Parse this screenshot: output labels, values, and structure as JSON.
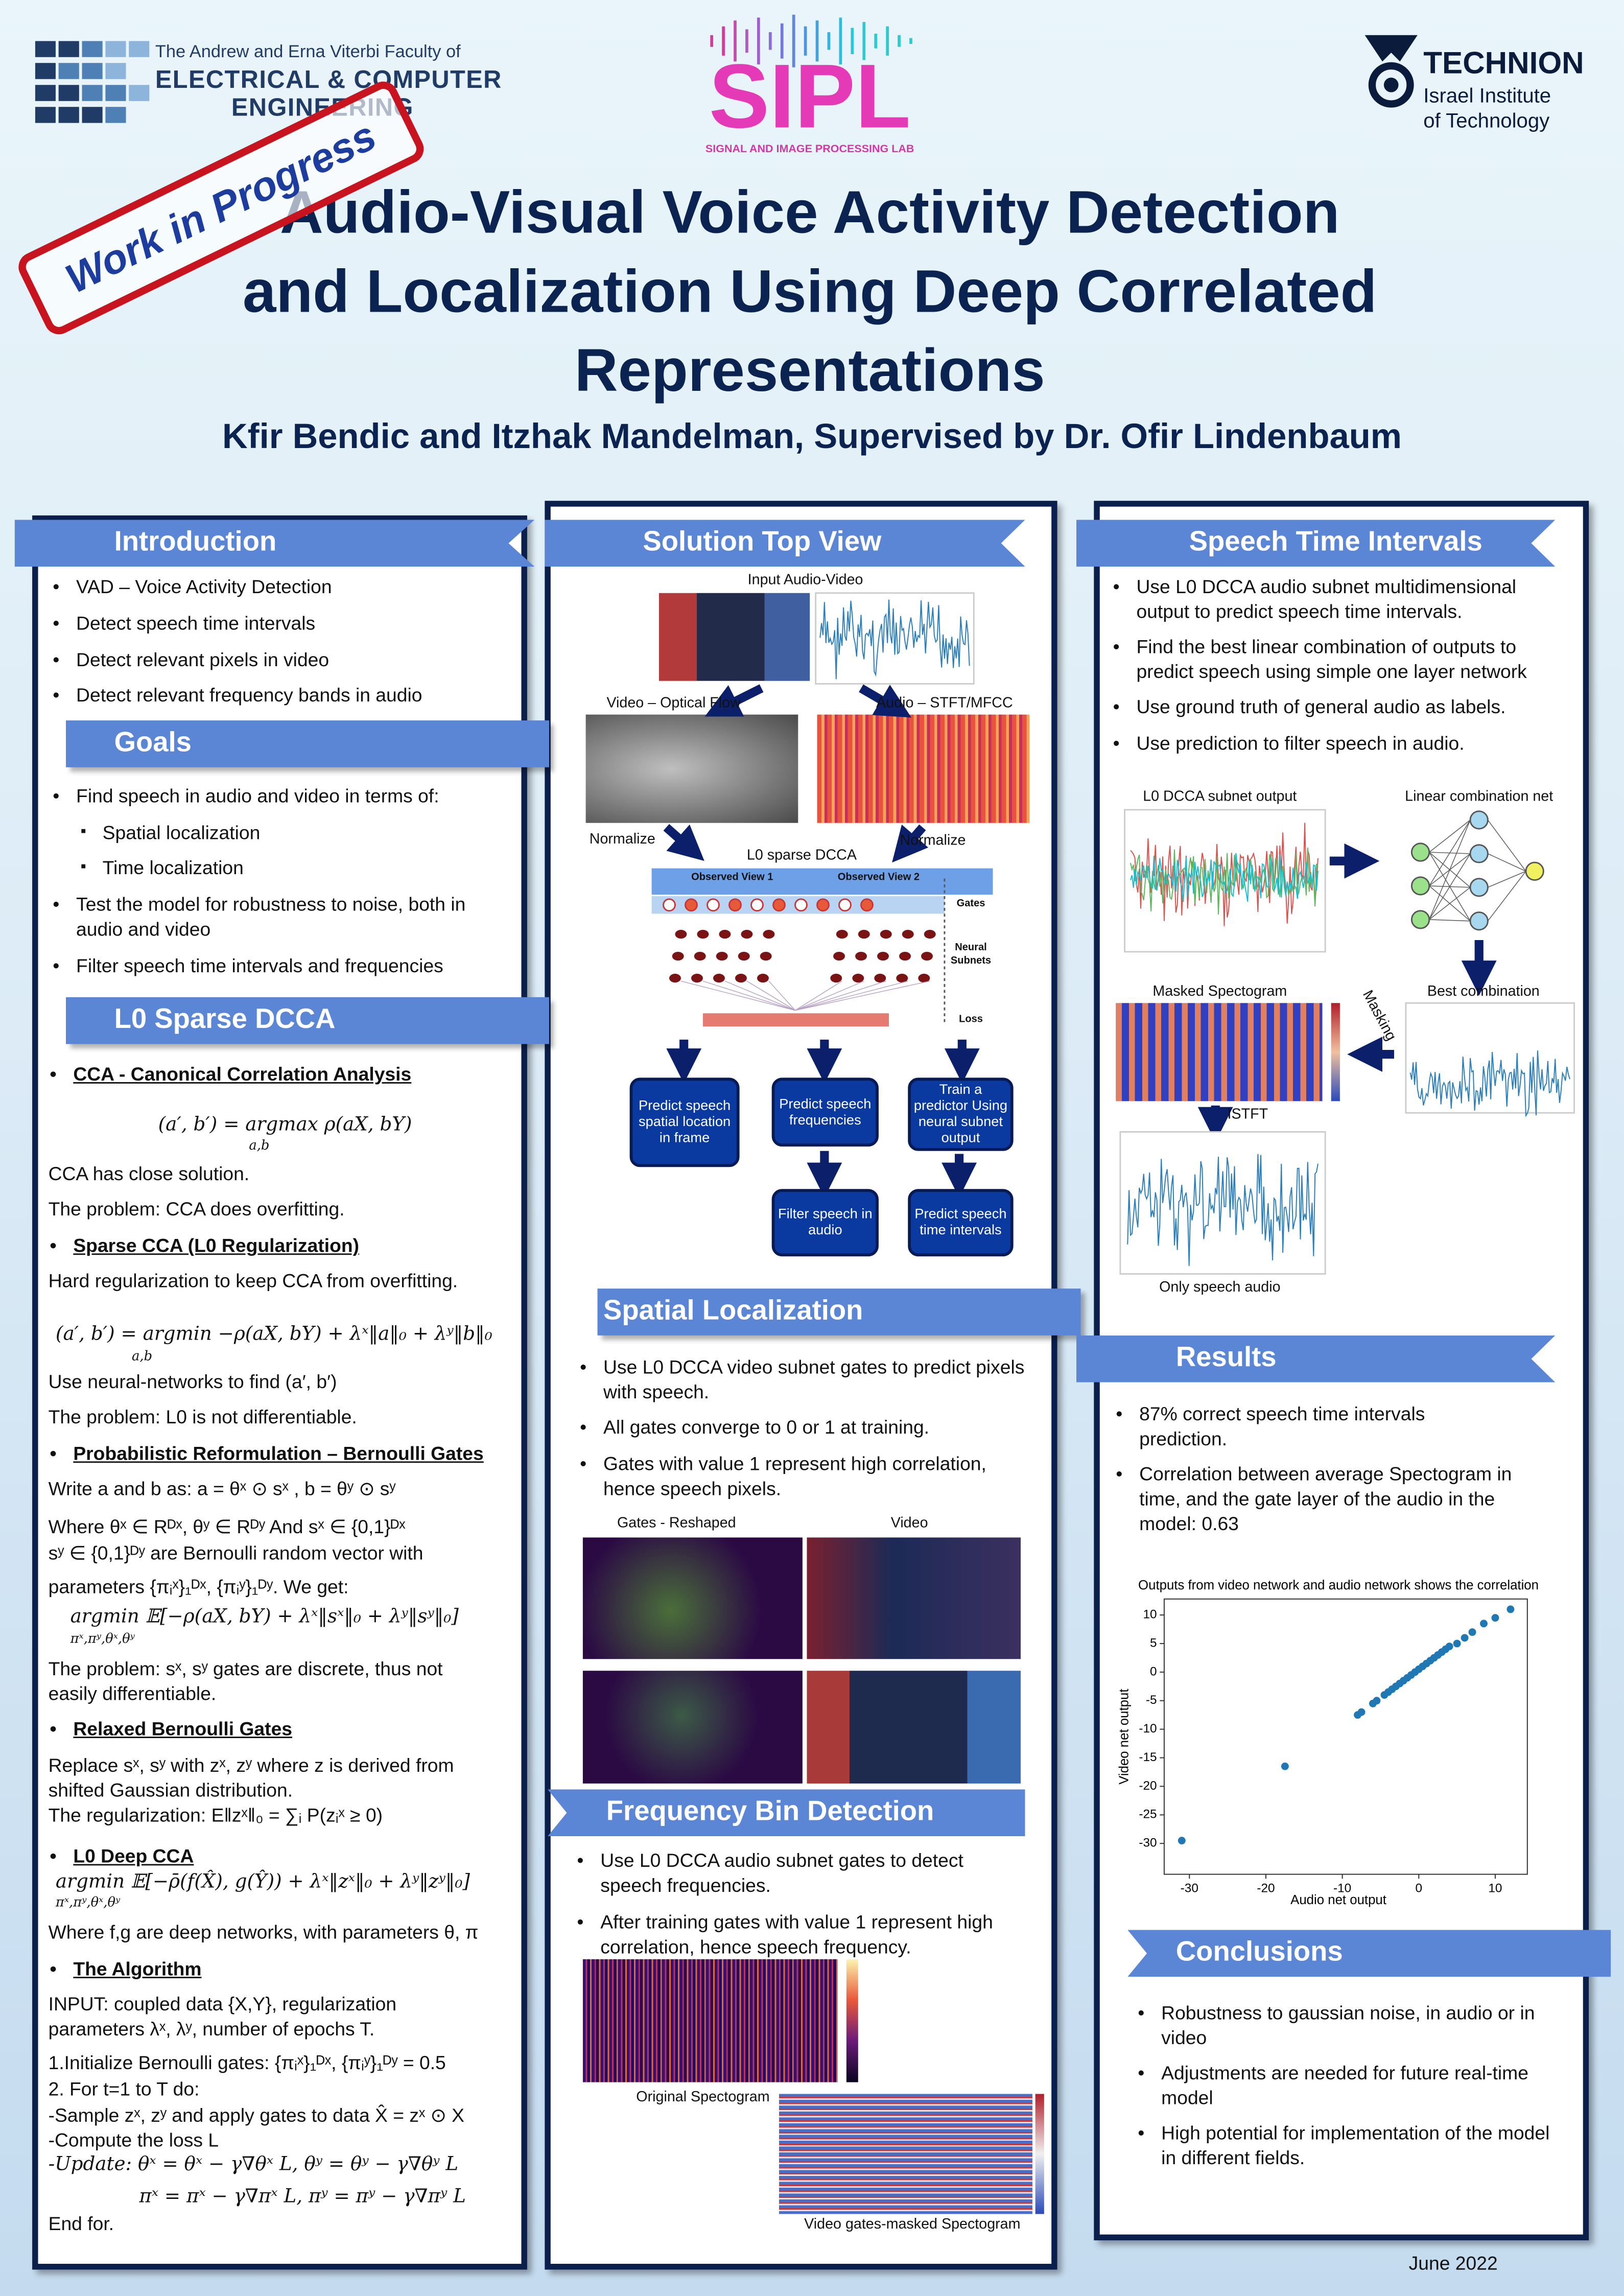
{
  "header": {
    "faculty": [
      "The Andrew and Erna Viterbi Faculty of",
      "ELECTRICAL & COMPUTER",
      "ENGINEERING"
    ],
    "lab": "SIPL",
    "lab_full": "SIGNAL AND IMAGE PROCESSING LAB",
    "university": "TECHNION",
    "university_sub": [
      "Israel Institute",
      "of Technology"
    ],
    "stamp": "Work in Progress",
    "title": [
      "Audio-Visual Voice Activity Detection",
      "and Localization Using Deep Correlated",
      "Representations"
    ],
    "authors": "Kfir Bendic and Itzhak Mandelman, Supervised by Dr. Ofir Lindenbaum"
  },
  "introduction": {
    "heading": "Introduction",
    "items": [
      "VAD – Voice Activity Detection",
      "Detect speech time intervals",
      "Detect relevant pixels in video",
      "Detect relevant frequency bands in audio"
    ]
  },
  "goals": {
    "heading": "Goals",
    "items": [
      "Find speech in audio and video in terms of:",
      "Test the model for robustness to noise, both in audio and video",
      "Filter speech time intervals and frequencies"
    ],
    "subitems": [
      "Spatial localization",
      "Time localization"
    ]
  },
  "l0_sparse_dcca": {
    "heading": "L0 Sparse DCCA",
    "lines": [
      "CCA - Canonical Correlation Analysis",
      "(a′, b′) = argmax ρ(aX, bY)",
      "a,b",
      "CCA has close solution.",
      "The problem: CCA does overfitting.",
      "Sparse CCA (L0 Regularization)",
      "Hard regularization to keep CCA from overfitting.",
      "(a′, b′) =  argmin −ρ(aX, bY) + λˣ‖a‖₀ + λʸ‖b‖₀",
      "a,b",
      "Use neural-networks to find (a′, b′)",
      "The problem: L0 is not differentiable.",
      "Probabilistic Reformulation – Bernoulli Gates",
      "Write a and b as: a = θˣ ⊙ sˣ , b = θʸ ⊙ sʸ",
      "Where θˣ ∈ Rᴰˣ, θʸ ∈ Rᴰʸ And sˣ ∈ {0,1}ᴰˣ",
      "sʸ ∈ {0,1}ᴰʸ are Bernoulli random vector with",
      "parameters {πᵢˣ}₁ᴰˣ, {πᵢʸ}₁ᴰʸ. We get:",
      "argmin 𝔼[−ρ(aX, bY) + λˣ‖sˣ‖₀ + λʸ‖sʸ‖₀]",
      "πˣ,πʸ,θˣ,θʸ",
      "The problem: sˣ, sʸ gates are discrete, thus not easily differentiable.",
      "Relaxed Bernoulli Gates",
      "Replace sˣ, sʸ with zˣ, zʸ where z is  derived from shifted Gaussian distribution.",
      "The regularization: E‖zˣ‖₀ = ∑ᵢ P(zᵢˣ ≥ 0)",
      "L0 Deep CCA",
      "argmin 𝔼[−ρ̄(f(X̂), g(Ŷ)) + λˣ‖zˣ‖₀ + λʸ‖zʸ‖₀]",
      "πˣ,πʸ,θˣ,θʸ",
      "Where f,g are deep networks, with parameters θ, π",
      "The Algorithm",
      "INPUT: coupled data  {X,Y}, regularization parameters λˣ, λʸ, number of epochs T.",
      "1.Initialize Bernoulli gates: {πᵢˣ}₁ᴰˣ, {πᵢʸ}₁ᴰʸ = 0.5",
      "2. For t=1 to T do:",
      "-Sample zˣ, zʸ and apply gates to data  X̂ = zˣ ⊙ X",
      "-Compute the loss L",
      "-Update:   θˣ = θˣ − γ∇θˣ L,    θʸ = θʸ − γ∇θʸ L",
      "πˣ = πˣ − γ∇πˣ L,    πʸ = πʸ − γ∇πʸ L",
      "End for."
    ]
  },
  "solution": {
    "heading": "Solution Top View",
    "input": "Input Audio-Video",
    "video": "Video – Optical Flow",
    "audio": "Audio – STFT/MFCC",
    "normalize": [
      "Normalize",
      "Normalize"
    ],
    "dcca": "L0 sparse DCCA",
    "view1": "Observed View 1",
    "view2": "Observed View 2",
    "gates": "Gates",
    "subnets": "Neural Subnets",
    "loss": "Loss",
    "boxes": [
      "Predict speech spatial location in frame",
      "Predict speech frequencies",
      "Train a predictor Using neural subnet output",
      "Filter speech in audio",
      "Predict speech time intervals"
    ]
  },
  "spatial": {
    "heading": "Spatial Localization",
    "items": [
      "Use L0 DCCA video subnet gates to predict pixels with speech.",
      "All gates converge to 0 or 1 at training.",
      "Gates with value 1 represent high correlation, hence speech pixels."
    ],
    "captions": [
      "Gates - Reshaped",
      "Video"
    ]
  },
  "frequency": {
    "heading": "Frequency Bin Detection",
    "items": [
      "Use L0 DCCA audio subnet gates to detect speech frequencies.",
      "After training gates with value 1 represent high correlation, hence speech frequency."
    ],
    "captions": [
      "Original Spectogram",
      "Video gates-masked Spectogram"
    ]
  },
  "speech_time": {
    "heading": "Speech Time Intervals",
    "items": [
      "Use L0 DCCA audio subnet multidimensional output to predict speech time intervals.",
      "Find the best linear combination of outputs to predict speech using simple one layer network",
      "Use ground truth of general audio as labels.",
      "Use prediction to filter speech in audio."
    ],
    "captions": [
      "L0 DCCA subnet output",
      "Linear combination net",
      "Masked Spectogram",
      "Best combination",
      "Masking",
      "ISTFT",
      "Only speech audio"
    ]
  },
  "results": {
    "heading": "Results",
    "items": [
      "87% correct speech time intervals prediction.",
      "Correlation between average Spectogram in time, and the gate layer of the audio in the model: 0.63"
    ]
  },
  "chart_data": {
    "type": "scatter",
    "title": "Outputs from video network and audio network shows the correlation",
    "xlabel": "Audio net output",
    "ylabel": "Video net output",
    "color": "#1f77b4",
    "x": [
      -31,
      -17.5,
      -8,
      -7.5,
      -6,
      -5.5,
      -4.5,
      -4,
      -3.5,
      -3,
      -2.5,
      -2,
      -1.5,
      -1,
      -0.5,
      0,
      0.5,
      1,
      1.5,
      2,
      2.5,
      3,
      3.5,
      4,
      5,
      6,
      7,
      8.5,
      10,
      12
    ],
    "y": [
      -29.5,
      -16.5,
      -7.5,
      -7,
      -5.5,
      -5,
      -4,
      -3.5,
      -3,
      -2.5,
      -2,
      -1.5,
      -1,
      -0.5,
      0,
      0.5,
      1,
      1.5,
      2,
      2.5,
      3,
      3.5,
      4,
      4.5,
      5,
      6,
      7,
      8.5,
      9.5,
      11
    ],
    "xlim": [
      -33.3,
      14.2
    ],
    "ylim": [
      -35.4,
      12.8
    ],
    "xticks": [
      -30,
      -20,
      -10,
      0,
      10
    ],
    "yticks": [
      10,
      5,
      0,
      -5,
      -10,
      -15,
      -20,
      -25,
      -30
    ]
  },
  "conclusions": {
    "heading": "Conclusions",
    "items": [
      "Robustness to gaussian noise, in audio or in video",
      "Adjustments are needed for future real-time model",
      "High potential for implementation of the model in different fields."
    ]
  },
  "footer": {
    "date": "June 2022"
  }
}
